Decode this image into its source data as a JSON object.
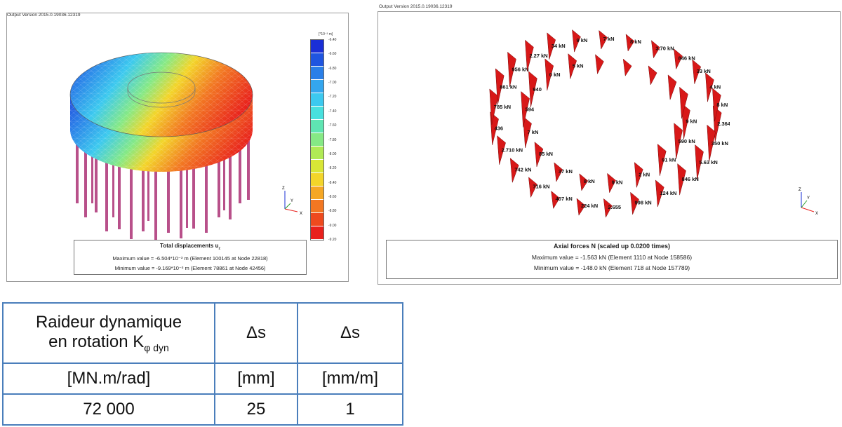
{
  "left_panel": {
    "version": "Output Version 2015.0.19036.12319",
    "legend_unit": "[*10⁻³ m]",
    "legend_values": [
      "-6.40",
      "-6.60",
      "-6.80",
      "-7.00",
      "-7.20",
      "-7.40",
      "-7.60",
      "-7.80",
      "-8.00",
      "-8.20",
      "-8.40",
      "-8.60",
      "-8.80",
      "-9.00",
      "-9.20"
    ],
    "legend_colors": [
      "#1a2fd6",
      "#1f55e0",
      "#2a7fe8",
      "#34a6ee",
      "#3cc9ef",
      "#48e0de",
      "#5fe5b2",
      "#86e985",
      "#b0ea55",
      "#d8e636",
      "#f3d52a",
      "#f5a725",
      "#f27722",
      "#ee4a1e",
      "#e8201c"
    ],
    "axis": {
      "z": "Z",
      "y": "Y",
      "x": "X"
    },
    "title": "Total displacements u",
    "title_sub": "z",
    "max_value": "Maximum value = -6.504*10⁻³ m (Element 100145 at Node 22818)",
    "min_value": "Minimum value = -9.169*10⁻³ m (Element 78861 at Node 42456)"
  },
  "right_panel": {
    "version": "Output Version 2015.0.19036.12319",
    "axis": {
      "z": "Z",
      "y": "Y",
      "x": "X"
    },
    "title": "Axial forces N (scaled up 0.0200 times)",
    "max_value": "Maximum value = -1.563 kN (Element 1110 at Node 158586)",
    "min_value": "Minimum value = -148.0 kN (Element 718 at Node 157789)",
    "labels": [
      "2.364 kN",
      "350 kN",
      "5.63 kN",
      "846 kN",
      "124 kN",
      "998 kN",
      "2.655",
      "224 kN",
      "407 kN",
      "716 kN",
      "742 kN",
      "2.710 kN",
      "436",
      "785 kN",
      "861 kN",
      "956 kN",
      "2.27 kN",
      "34 kN",
      "9 kN",
      "7 kN",
      "8 kN",
      "3.70 kN",
      "846 kN",
      "33 kN",
      "4 kN",
      "8 kN",
      "9 kN",
      "590 kN",
      "91 kN",
      "2 kN",
      "9 kN",
      "8 kN",
      "37 kN",
      "85 kN",
      "7 kN",
      "594",
      "940",
      "0 kN",
      "5 kN"
    ]
  },
  "table": {
    "header_col1_line1": "Raideur dynamique",
    "header_col1_line2": "en rotation K",
    "header_col1_sub": "φ dyn",
    "header_col2": "Δs",
    "header_col3": "Δs",
    "unit_col1": "[MN.m/rad]",
    "unit_col2": "[mm]",
    "unit_col3": "[mm/m]",
    "value_col1": "72 000",
    "value_col2": "25",
    "value_col3": "1"
  }
}
